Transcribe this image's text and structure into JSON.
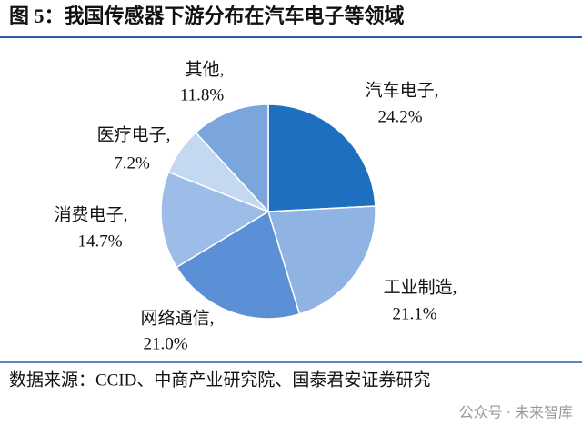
{
  "chart_data": {
    "type": "pie",
    "title": "图 5：我国传感器下游分布在汽车电子等领域",
    "categories": [
      "汽车电子,",
      "工业制造,",
      "网络通信,",
      "消费电子,",
      "医疗电子,",
      "其他,"
    ],
    "values": [
      24.2,
      21.1,
      21.0,
      14.7,
      7.2,
      11.8
    ],
    "value_labels": [
      "24.2%",
      "21.1%",
      "21.0%",
      "14.7%",
      "7.2%",
      "11.8%"
    ],
    "colors": [
      "#1f6fc0",
      "#8fb3e3",
      "#5b8fd6",
      "#9dbde8",
      "#c5d8f1",
      "#7aa6dd"
    ],
    "source": "数据来源：CCID、中商产业研究院、国泰君安证券研究",
    "watermark": "公众号 · 未来智库"
  }
}
